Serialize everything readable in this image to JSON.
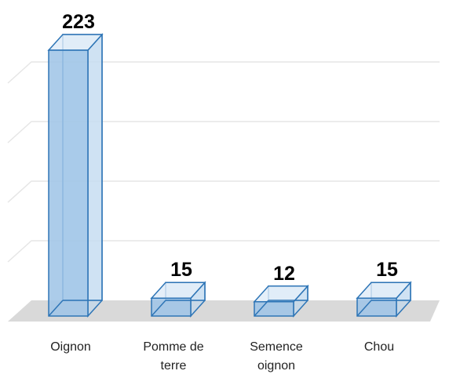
{
  "chart_data": {
    "type": "bar3d",
    "categories": [
      "Oignon",
      "Pomme de terre",
      "Semence oignon",
      "Chou"
    ],
    "values": [
      223,
      15,
      12,
      15
    ],
    "color": "#9dc3e6",
    "edge_color": "#2e75b6",
    "ylim": [
      0,
      250
    ],
    "yticks": [
      0,
      50,
      100,
      150,
      200
    ],
    "grid": true
  }
}
